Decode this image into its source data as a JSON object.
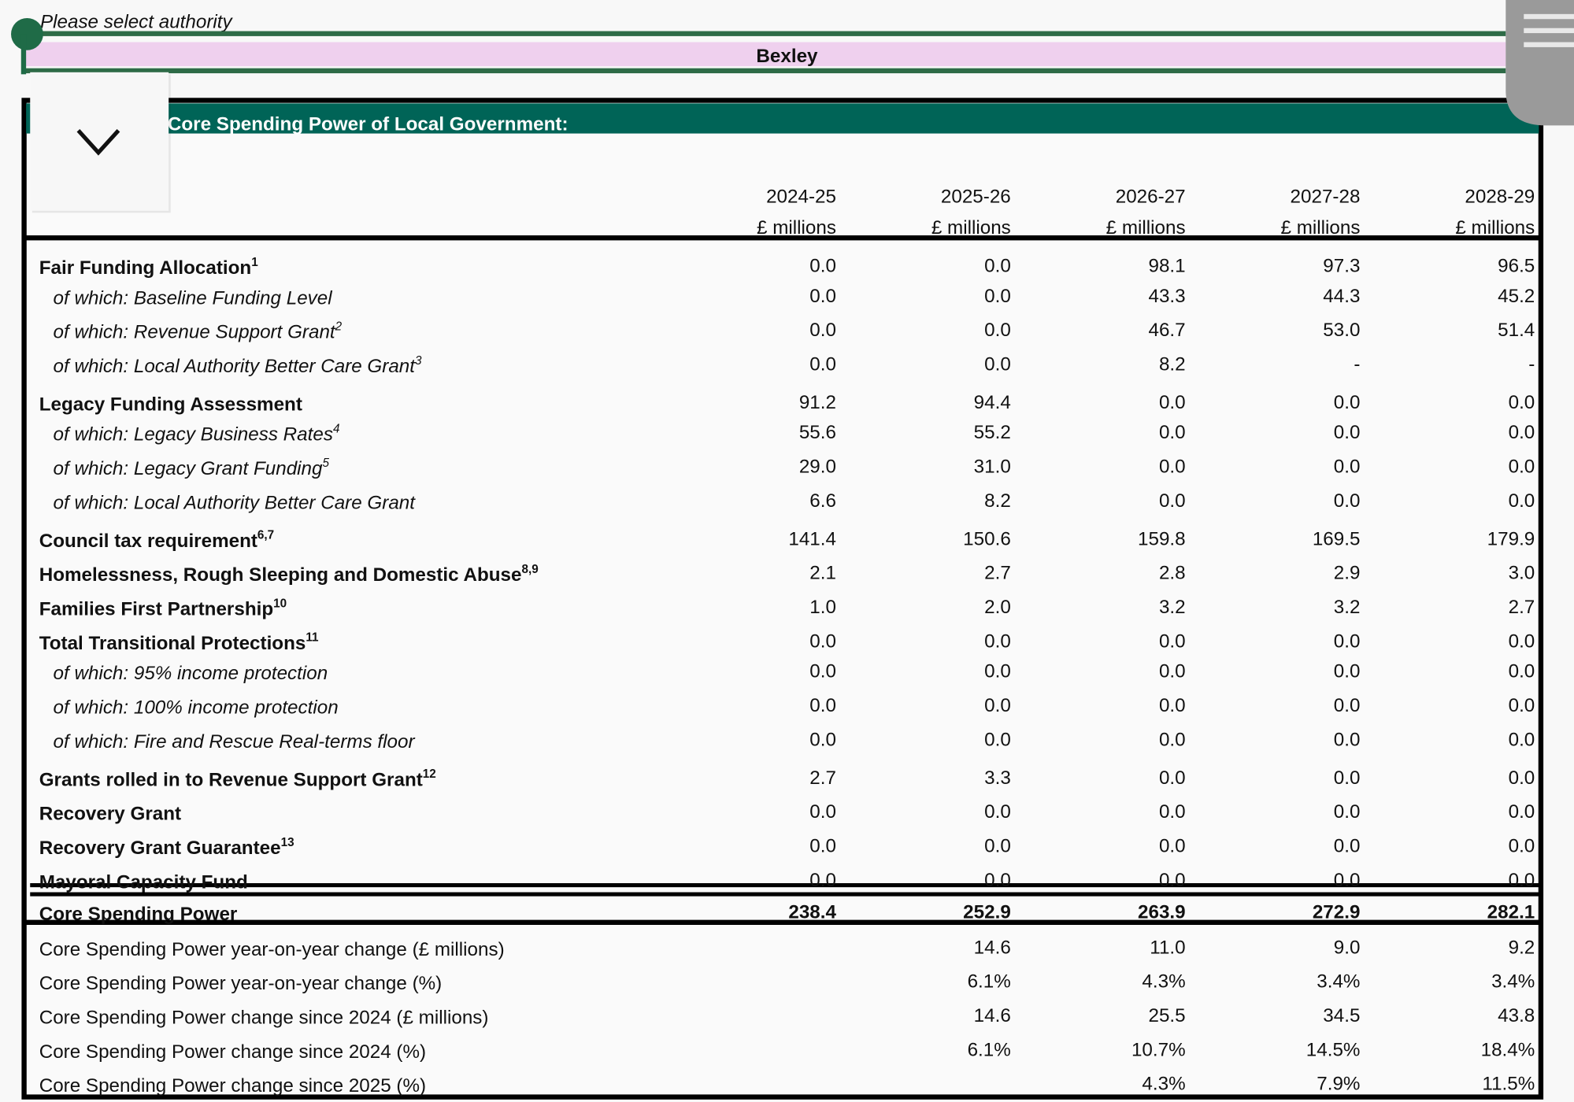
{
  "selector": {
    "label": "Please select authority",
    "value": "Bexley"
  },
  "table": {
    "title": "Core Spending Power of Local Government:",
    "columns": [
      {
        "year": "2024-25",
        "unit": "£ millions"
      },
      {
        "year": "2025-26",
        "unit": "£ millions"
      },
      {
        "year": "2026-27",
        "unit": "£ millions"
      },
      {
        "year": "2027-28",
        "unit": "£ millions"
      },
      {
        "year": "2028-29",
        "unit": "£ millions"
      }
    ],
    "rows": [
      {
        "label": "Fair Funding Allocation",
        "note": "1",
        "style": "bold",
        "values": [
          "0.0",
          "0.0",
          "98.1",
          "97.3",
          "96.5"
        ]
      },
      {
        "label": "of which: Baseline Funding Level",
        "style": "italic",
        "values": [
          "0.0",
          "0.0",
          "43.3",
          "44.3",
          "45.2"
        ]
      },
      {
        "label": "of which: Revenue Support Grant",
        "note": "2",
        "style": "italic",
        "values": [
          "0.0",
          "0.0",
          "46.7",
          "53.0",
          "51.4"
        ]
      },
      {
        "label": "of which: Local Authority Better Care Grant",
        "note": "3",
        "style": "italic",
        "values": [
          "0.0",
          "0.0",
          "8.2",
          "-",
          "-"
        ]
      },
      {
        "label": "Legacy Funding Assessment",
        "style": "bold",
        "values": [
          "91.2",
          "94.4",
          "0.0",
          "0.0",
          "0.0"
        ]
      },
      {
        "label": "of which: Legacy Business Rates",
        "note": "4",
        "style": "italic",
        "values": [
          "55.6",
          "55.2",
          "0.0",
          "0.0",
          "0.0"
        ]
      },
      {
        "label": "of which: Legacy Grant Funding",
        "note": "5",
        "style": "italic",
        "values": [
          "29.0",
          "31.0",
          "0.0",
          "0.0",
          "0.0"
        ]
      },
      {
        "label": "of which: Local Authority Better Care Grant",
        "style": "italic",
        "values": [
          "6.6",
          "8.2",
          "0.0",
          "0.0",
          "0.0"
        ]
      },
      {
        "label": "Council tax requirement",
        "note": "6,7",
        "style": "bold",
        "values": [
          "141.4",
          "150.6",
          "159.8",
          "169.5",
          "179.9"
        ]
      },
      {
        "label": "Homelessness, Rough Sleeping and Domestic Abuse",
        "note": "8,9",
        "style": "bold",
        "values": [
          "2.1",
          "2.7",
          "2.8",
          "2.9",
          "3.0"
        ]
      },
      {
        "label": "Families First Partnership",
        "note": "10",
        "style": "bold",
        "values": [
          "1.0",
          "2.0",
          "3.2",
          "3.2",
          "2.7"
        ]
      },
      {
        "label": "Total Transitional Protections",
        "note": "11",
        "style": "bold",
        "values": [
          "0.0",
          "0.0",
          "0.0",
          "0.0",
          "0.0"
        ]
      },
      {
        "label": "of which: 95% income protection",
        "style": "italic",
        "values": [
          "0.0",
          "0.0",
          "0.0",
          "0.0",
          "0.0"
        ]
      },
      {
        "label": "of which: 100% income protection",
        "style": "italic",
        "values": [
          "0.0",
          "0.0",
          "0.0",
          "0.0",
          "0.0"
        ]
      },
      {
        "label": "of which: Fire and Rescue Real-terms floor",
        "style": "italic",
        "values": [
          "0.0",
          "0.0",
          "0.0",
          "0.0",
          "0.0"
        ]
      },
      {
        "label": "Grants rolled in to Revenue Support Grant",
        "note": "12",
        "style": "bold",
        "values": [
          "2.7",
          "3.3",
          "0.0",
          "0.0",
          "0.0"
        ]
      },
      {
        "label": "Recovery Grant",
        "style": "bold",
        "values": [
          "0.0",
          "0.0",
          "0.0",
          "0.0",
          "0.0"
        ]
      },
      {
        "label": "Recovery Grant Guarantee",
        "note": "13",
        "style": "bold",
        "values": [
          "0.0",
          "0.0",
          "0.0",
          "0.0",
          "0.0"
        ]
      },
      {
        "label": "Mayoral Capacity Fund",
        "style": "bold",
        "values": [
          "0.0",
          "0.0",
          "0.0",
          "0.0",
          "0.0"
        ]
      }
    ],
    "total": {
      "label": "Core Spending Power",
      "style": "bold",
      "values": [
        "238.4",
        "252.9",
        "263.9",
        "272.9",
        "282.1"
      ]
    },
    "changes": [
      {
        "label": "Core Spending Power year-on-year change (£ millions)",
        "style": "normal",
        "values": [
          null,
          "14.6",
          "11.0",
          "9.0",
          "9.2"
        ]
      },
      {
        "label": "Core Spending Power year-on-year change (%)",
        "style": "normal",
        "values": [
          null,
          "6.1%",
          "4.3%",
          "3.4%",
          "3.4%"
        ]
      },
      {
        "label": "Core Spending Power change since 2024 (£ millions)",
        "style": "normal",
        "values": [
          null,
          "14.6",
          "25.5",
          "34.5",
          "43.8"
        ]
      },
      {
        "label": "Core Spending Power change since 2024 (%)",
        "style": "normal",
        "values": [
          null,
          "6.1%",
          "10.7%",
          "14.5%",
          "18.4%"
        ]
      },
      {
        "label": "Core Spending Power change since 2025 (%)",
        "style": "normal",
        "values": [
          null,
          null,
          "4.3%",
          "7.9%",
          "11.5%"
        ]
      }
    ]
  }
}
